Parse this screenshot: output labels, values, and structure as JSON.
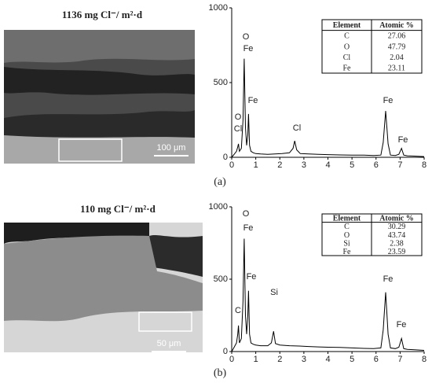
{
  "panels": [
    {
      "image_title": "1136 mg Cl⁻/ m²·d",
      "scale_bar": "100 μm",
      "caption": "(a)"
    },
    {
      "image_title": "110 mg Cl⁻/ m²·d",
      "scale_bar": "50 μm",
      "caption": "(b)"
    }
  ],
  "chart_data": [
    {
      "type": "line",
      "color": "#000000",
      "x": [
        0,
        0.1,
        0.2,
        0.25,
        0.28,
        0.32,
        0.4,
        0.47,
        0.52,
        0.57,
        0.62,
        0.67,
        0.7,
        0.74,
        0.8,
        0.9,
        1.0,
        1.2,
        1.5,
        1.8,
        2.1,
        2.4,
        2.55,
        2.62,
        2.7,
        2.85,
        3.2,
        3.6,
        4.0,
        4.5,
        5.0,
        5.5,
        5.9,
        6.2,
        6.3,
        6.4,
        6.5,
        6.6,
        6.8,
        6.95,
        7.06,
        7.15,
        7.3,
        7.6,
        8.0
      ],
      "values": [
        0,
        20,
        40,
        70,
        90,
        40,
        60,
        250,
        660,
        200,
        80,
        150,
        290,
        80,
        40,
        30,
        25,
        22,
        20,
        22,
        25,
        30,
        60,
        110,
        50,
        25,
        22,
        20,
        18,
        16,
        15,
        14,
        12,
        15,
        100,
        310,
        90,
        15,
        12,
        20,
        60,
        15,
        10,
        8,
        5
      ],
      "xlim": [
        0,
        8
      ],
      "xticks": [
        0,
        1,
        2,
        3,
        4,
        5,
        6,
        7,
        8
      ],
      "ylim": [
        0,
        1000
      ],
      "yticks": [
        0,
        500,
        1000
      ],
      "annotations": [
        "O",
        "Fe",
        "Fe",
        "O",
        "Cl",
        "Cl",
        "Fe",
        "Fe"
      ],
      "table": {
        "header": [
          "Element",
          "Atomic %"
        ],
        "rows": [
          [
            "C",
            27.06
          ],
          [
            "O",
            47.79
          ],
          [
            "Cl",
            2.04
          ],
          [
            "Fe",
            23.11
          ]
        ]
      }
    },
    {
      "type": "line",
      "color": "#000000",
      "x": [
        0,
        0.1,
        0.2,
        0.25,
        0.28,
        0.32,
        0.4,
        0.47,
        0.52,
        0.57,
        0.62,
        0.67,
        0.7,
        0.74,
        0.8,
        0.9,
        1.0,
        1.2,
        1.5,
        1.65,
        1.74,
        1.82,
        2.0,
        2.4,
        2.8,
        3.2,
        3.6,
        4.0,
        4.5,
        5.0,
        5.5,
        5.9,
        6.2,
        6.3,
        6.4,
        6.5,
        6.6,
        6.8,
        6.95,
        7.06,
        7.15,
        7.3,
        7.6,
        8.0
      ],
      "values": [
        0,
        30,
        60,
        120,
        180,
        60,
        90,
        350,
        780,
        250,
        120,
        250,
        420,
        120,
        60,
        50,
        45,
        40,
        40,
        60,
        140,
        55,
        45,
        40,
        38,
        35,
        32,
        30,
        28,
        25,
        22,
        20,
        25,
        150,
        410,
        120,
        25,
        20,
        30,
        90,
        20,
        15,
        12,
        8
      ],
      "xlim": [
        0,
        8
      ],
      "xticks": [
        0,
        1,
        2,
        3,
        4,
        5,
        6,
        7,
        8
      ],
      "ylim": [
        0,
        1000
      ],
      "yticks": [
        0,
        500,
        1000
      ],
      "annotations": [
        "O",
        "Fe",
        "Fe",
        "C",
        "Si",
        "Fe",
        "Fe"
      ],
      "table": {
        "header": [
          "Element",
          "Atomic %"
        ],
        "rows": [
          [
            "C",
            30.29
          ],
          [
            "O",
            43.74
          ],
          [
            "Si",
            2.38
          ],
          [
            "Fe",
            23.59
          ]
        ]
      }
    }
  ]
}
